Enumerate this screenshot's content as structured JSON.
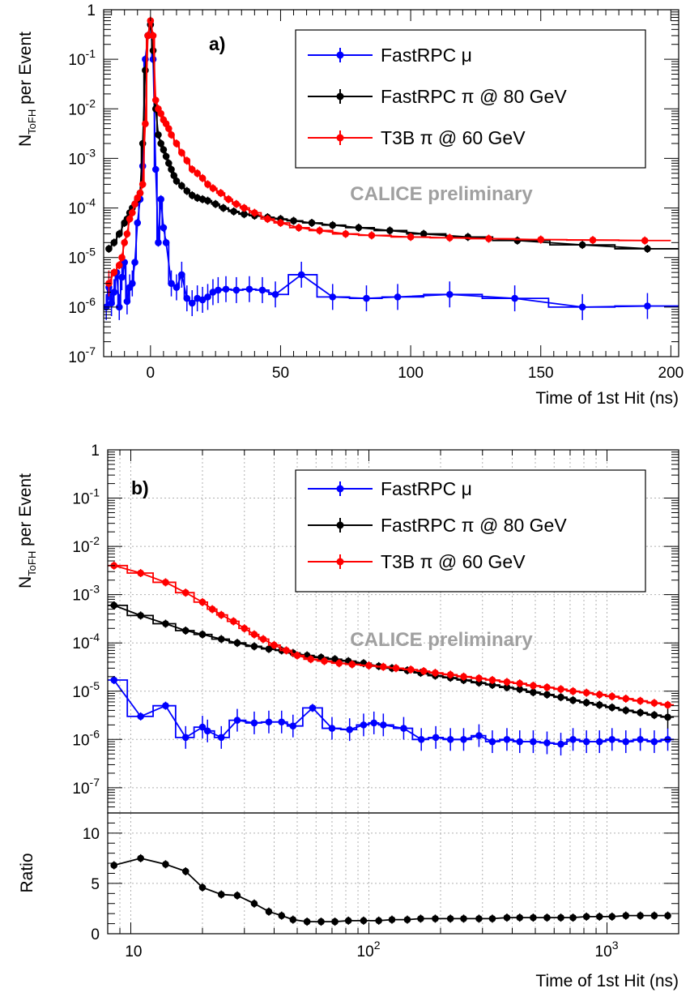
{
  "chart_data": [
    {
      "panel": "a)",
      "type": "line",
      "xlabel": "Time of 1st Hit (ns)",
      "ylabel": "N_ToFH per Event",
      "xscale": "linear",
      "yscale": "log",
      "xlim": [
        -18,
        203
      ],
      "ylim": [
        1e-07,
        1
      ],
      "xticks": [
        "0",
        "50",
        "100",
        "150",
        "200"
      ],
      "yticks": [
        "1",
        "10^-1",
        "10^-2",
        "10^-3",
        "10^-4",
        "10^-5",
        "10^-6",
        "10^-7"
      ],
      "watermark": "CALICE preliminary",
      "legend_position": "top-right",
      "grid": false,
      "series": [
        {
          "name": "FastRPC μ",
          "color": "#0000ff",
          "x": [
            -17,
            -16,
            -15,
            -14,
            -13,
            -12,
            -11,
            -10,
            -9,
            -8,
            -7,
            -6,
            -5,
            -4,
            -3,
            -2,
            -1,
            0,
            1,
            2,
            3,
            4,
            5,
            6,
            8,
            10,
            12,
            14,
            16,
            18,
            20,
            22,
            24,
            26,
            29,
            33,
            38,
            43,
            48,
            58,
            70,
            83,
            95,
            115,
            140,
            166,
            191
          ],
          "y": [
            1e-06,
            2.5e-06,
            1.2e-06,
            2e-06,
            5e-06,
            1e-06,
            4e-06,
            8e-06,
            1.3e-06,
            2.5e-06,
            3e-06,
            8e-06,
            5e-05,
            0.00015,
            0.0007,
            0.1,
            0.3,
            0.5,
            0.1,
            0.0006,
            2e-05,
            0.00015,
            4e-05,
            2e-05,
            3e-06,
            2.5e-06,
            4.5e-06,
            1.5e-06,
            1.2e-06,
            1.5e-06,
            1.4e-06,
            1.6e-06,
            2e-06,
            2.2e-06,
            2.3e-06,
            2.2e-06,
            2.3e-06,
            2.2e-06,
            1.8e-06,
            4.5e-06,
            1.6e-06,
            1.5e-06,
            1.6e-06,
            1.8e-06,
            1.5e-06,
            1e-06,
            1.05e-06
          ]
        },
        {
          "name": "FastRPC π @ 80 GeV",
          "color": "#000000",
          "x": [
            -16,
            -14,
            -12,
            -10,
            -9,
            -8,
            -7,
            -6,
            -5,
            -4,
            -3,
            -2,
            -1,
            0,
            1,
            2,
            3,
            4,
            5,
            6,
            7,
            8,
            9,
            10,
            12,
            14,
            16,
            18,
            20,
            22,
            25,
            28,
            32,
            36,
            40,
            45,
            50,
            55,
            62,
            70,
            80,
            92,
            105,
            122,
            141,
            166,
            191
          ],
          "y": [
            1.5e-05,
            2e-05,
            3e-05,
            5e-05,
            6e-05,
            8e-05,
            0.0001,
            0.00012,
            0.00015,
            0.0002,
            0.002,
            0.06,
            0.3,
            0.5,
            0.15,
            0.01,
            0.003,
            0.002,
            0.0015,
            0.0011,
            0.0008,
            0.0006,
            0.00045,
            0.00035,
            0.00028,
            0.00022,
            0.00018,
            0.00016,
            0.00015,
            0.00014,
            0.00012,
            0.0001,
            8.5e-05,
            7.5e-05,
            7e-05,
            6.5e-05,
            6e-05,
            5.5e-05,
            5e-05,
            4.5e-05,
            4e-05,
            3.5e-05,
            3e-05,
            2.6e-05,
            2.2e-05,
            1.8e-05,
            1.5e-05
          ]
        },
        {
          "name": "T3B π @ 60 GeV",
          "color": "#ff0000",
          "x": [
            -16,
            -14,
            -12,
            -11,
            -10,
            -9,
            -8,
            -7,
            -6,
            -5,
            -4,
            -3,
            -2,
            -1,
            0,
            1,
            2,
            3,
            4,
            5,
            6,
            7,
            8,
            10,
            12,
            14,
            16,
            18,
            20,
            22,
            24,
            27,
            30,
            33,
            36,
            40,
            45,
            50,
            57,
            65,
            75,
            85,
            100,
            115,
            130,
            150,
            170,
            190
          ],
          "y": [
            3e-06,
            5e-06,
            7e-06,
            1e-05,
            2e-05,
            3e-05,
            6e-05,
            8e-05,
            0.00012,
            0.00016,
            0.0002,
            0.0003,
            0.005,
            0.3,
            0.6,
            0.3,
            0.015,
            0.01,
            0.008,
            0.006,
            0.005,
            0.004,
            0.003,
            0.002,
            0.0013,
            0.0009,
            0.0006,
            0.0005,
            0.0004,
            0.0003,
            0.00025,
            0.0002,
            0.00015,
            0.00012,
            0.0001,
            8e-05,
            6e-05,
            5e-05,
            4e-05,
            3.5e-05,
            3e-05,
            2.8e-05,
            2.6e-05,
            2.5e-05,
            2.4e-05,
            2.3e-05,
            2.25e-05,
            2.2e-05
          ]
        }
      ]
    },
    {
      "panel": "b)",
      "type": "line",
      "xlabel": "Time of 1st Hit (ns)",
      "ylabel": "N_ToFH per Event",
      "xscale": "log",
      "yscale": "log",
      "xlim": [
        8,
        2000
      ],
      "ylim": [
        3e-08,
        1
      ],
      "xticks": [
        "10",
        "10^2",
        "10^3"
      ],
      "yticks": [
        "1",
        "10^-1",
        "10^-2",
        "10^-3",
        "10^-4",
        "10^-5",
        "10^-6",
        "10^-7"
      ],
      "watermark": "CALICE preliminary",
      "legend_position": "top-right",
      "grid": true,
      "series": [
        {
          "name": "FastRPC μ",
          "color": "#0000ff",
          "x": [
            8.5,
            11,
            14,
            17,
            20,
            21,
            24,
            28,
            33,
            38,
            43,
            48,
            58,
            70,
            83,
            95,
            105,
            115,
            140,
            166,
            191,
            220,
            250,
            290,
            330,
            380,
            430,
            490,
            560,
            640,
            720,
            820,
            930,
            1050,
            1200,
            1380,
            1580,
            1800
          ],
          "y": [
            1.7e-05,
            3e-06,
            5e-06,
            1.1e-06,
            1.8e-06,
            1.5e-06,
            1.1e-06,
            2.5e-06,
            2.2e-06,
            2.3e-06,
            2.3e-06,
            1.9e-06,
            4.5e-06,
            1.7e-06,
            1.6e-06,
            2e-06,
            2.2e-06,
            2e-06,
            1.7e-06,
            1e-06,
            1.1e-06,
            1e-06,
            1e-06,
            1.2e-06,
            9e-07,
            1e-06,
            9e-07,
            9e-07,
            8.5e-07,
            8e-07,
            1e-06,
            9e-07,
            9e-07,
            1e-06,
            9e-07,
            1e-06,
            9e-07,
            1e-06
          ]
        },
        {
          "name": "FastRPC π @ 80 GeV",
          "color": "#000000",
          "x": [
            8.5,
            11,
            14,
            17,
            20,
            24,
            28,
            33,
            38,
            43,
            48,
            55,
            63,
            72,
            82,
            95,
            110,
            125,
            145,
            165,
            190,
            220,
            250,
            290,
            330,
            380,
            430,
            490,
            560,
            640,
            720,
            820,
            930,
            1050,
            1200,
            1380,
            1580,
            1800
          ],
          "y": [
            0.0006,
            0.00037,
            0.00025,
            0.00018,
            0.00015,
            0.00012,
            0.0001,
            8.5e-05,
            7.5e-05,
            7e-05,
            6.2e-05,
            5.5e-05,
            5e-05,
            4.6e-05,
            4.2e-05,
            3.8e-05,
            3.3e-05,
            3e-05,
            2.7e-05,
            2.4e-05,
            2.1e-05,
            1.9e-05,
            1.7e-05,
            1.5e-05,
            1.35e-05,
            1.2e-05,
            1.1e-05,
            9.5e-06,
            8.5e-06,
            7.5e-06,
            6.5e-06,
            5.8e-06,
            5.2e-06,
            4.6e-06,
            4e-06,
            3.6e-06,
            3.2e-06,
            2.9e-06
          ]
        },
        {
          "name": "T3B π @ 60 GeV",
          "color": "#ff0000",
          "x": [
            8.5,
            11,
            14,
            17,
            20,
            22,
            24,
            27,
            30,
            33,
            36,
            40,
            45,
            50,
            57,
            65,
            75,
            85,
            100,
            115,
            130,
            150,
            170,
            190,
            220,
            250,
            290,
            330,
            380,
            430,
            490,
            560,
            640,
            720,
            820,
            930,
            1050,
            1200,
            1380,
            1580,
            1800
          ],
          "y": [
            0.004,
            0.0028,
            0.0018,
            0.0011,
            0.0007,
            0.0005,
            0.00038,
            0.00028,
            0.0002,
            0.00015,
            0.00012,
            9e-05,
            7e-05,
            5.5e-05,
            4.6e-05,
            4.2e-05,
            3.8e-05,
            3.6e-05,
            3.4e-05,
            3.2e-05,
            3e-05,
            2.8e-05,
            2.6e-05,
            2.4e-05,
            2.2e-05,
            2e-05,
            1.85e-05,
            1.7e-05,
            1.55e-05,
            1.45e-05,
            1.3e-05,
            1.2e-05,
            1.1e-05,
            1e-05,
            9.3e-06,
            8.5e-06,
            7.8e-06,
            7e-06,
            6.3e-06,
            5.7e-06,
            5.2e-06
          ]
        }
      ]
    },
    {
      "panel": "b) ratio",
      "type": "line",
      "xlabel": "Time of 1st Hit (ns)",
      "ylabel": "Ratio",
      "xscale": "log",
      "yscale": "linear",
      "xlim": [
        8,
        2000
      ],
      "ylim": [
        0,
        12
      ],
      "yticks": [
        "0",
        "5",
        "10"
      ],
      "grid": true,
      "series": [
        {
          "color": "#000000",
          "x": [
            8.5,
            11,
            14,
            17,
            20,
            24,
            28,
            33,
            38,
            43,
            48,
            55,
            63,
            72,
            82,
            95,
            110,
            125,
            145,
            165,
            190,
            220,
            250,
            290,
            330,
            380,
            430,
            490,
            560,
            640,
            720,
            820,
            930,
            1050,
            1200,
            1380,
            1580,
            1800
          ],
          "y": [
            6.8,
            7.5,
            6.9,
            6.2,
            4.6,
            3.9,
            3.8,
            3.0,
            2.2,
            1.8,
            1.4,
            1.2,
            1.2,
            1.2,
            1.3,
            1.3,
            1.3,
            1.4,
            1.4,
            1.5,
            1.5,
            1.5,
            1.5,
            1.5,
            1.5,
            1.6,
            1.6,
            1.6,
            1.6,
            1.6,
            1.6,
            1.7,
            1.7,
            1.7,
            1.8,
            1.8,
            1.8,
            1.8
          ]
        }
      ]
    }
  ]
}
